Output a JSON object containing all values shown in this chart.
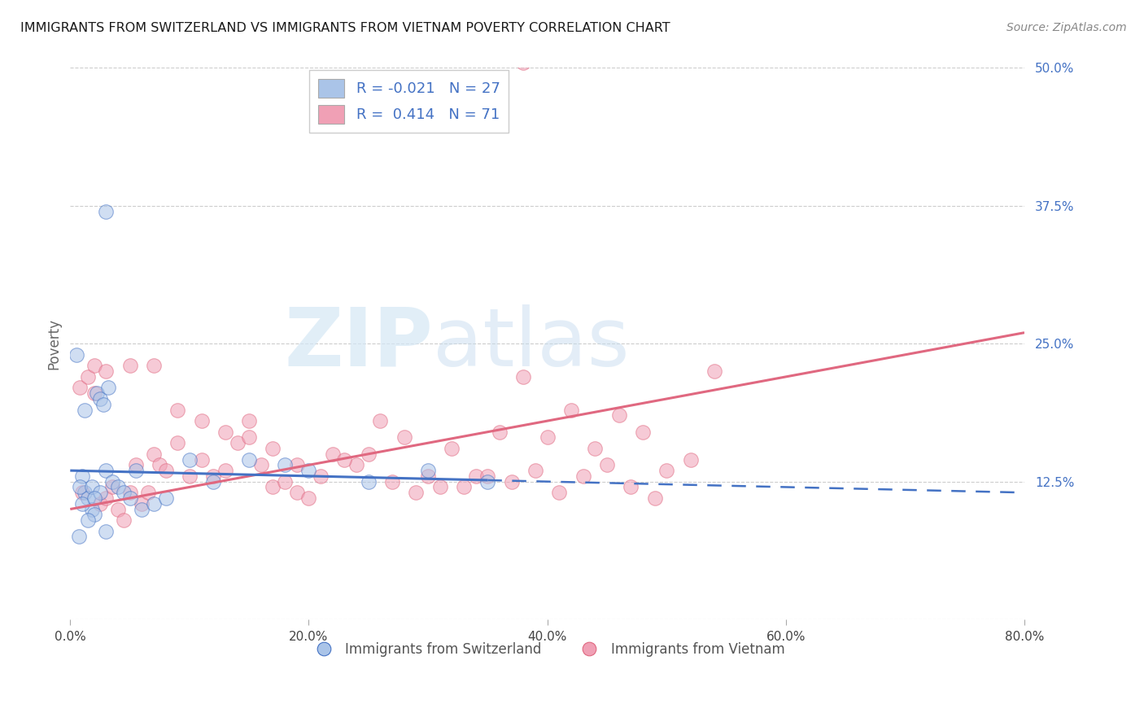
{
  "title": "IMMIGRANTS FROM SWITZERLAND VS IMMIGRANTS FROM VIETNAM POVERTY CORRELATION CHART",
  "source": "Source: ZipAtlas.com",
  "ylabel": "Poverty",
  "xtick_vals": [
    0.0,
    20.0,
    40.0,
    60.0,
    80.0
  ],
  "ytick_vals": [
    0.0,
    12.5,
    25.0,
    37.5,
    50.0
  ],
  "ytick_labels": [
    "",
    "12.5%",
    "25.0%",
    "37.5%",
    "50.0%"
  ],
  "xtick_labels": [
    "0.0%",
    "20.0%",
    "40.0%",
    "60.0%",
    "80.0%"
  ],
  "xlim": [
    0.0,
    80.0
  ],
  "ylim": [
    0.0,
    50.0
  ],
  "legend_r_swiss": "-0.021",
  "legend_n_swiss": "27",
  "legend_r_viet": "0.414",
  "legend_n_viet": "71",
  "swiss_face_color": "#aac4e8",
  "viet_face_color": "#f0a0b5",
  "swiss_line_color": "#4472c4",
  "viet_line_color": "#e06880",
  "legend_label_swiss": "Immigrants from Switzerland",
  "legend_label_viet": "Immigrants from Vietnam",
  "watermark_zip": "ZIP",
  "watermark_atlas": "atlas",
  "title_color": "#1a1a1a",
  "source_color": "#888888",
  "ytick_color": "#4472c4",
  "xtick_color": "#444444",
  "ylabel_color": "#666666",
  "grid_color": "#c8c8c8",
  "legend_text_color": "#4472c4",
  "bottom_legend_color": "#555555",
  "swiss_trend_start_y": 13.5,
  "swiss_trend_end_y": 11.5,
  "viet_trend_start_y": 10.0,
  "viet_trend_end_y": 26.0,
  "swiss_solid_end_x": 35.0,
  "swiss_x": [
    1.0,
    1.2,
    1.5,
    1.8,
    2.0,
    2.2,
    2.5,
    2.8,
    3.0,
    3.2,
    3.5,
    4.0,
    4.5,
    5.0,
    5.5,
    6.0,
    7.0,
    8.0,
    10.0,
    12.0,
    15.0,
    18.0,
    20.0,
    25.0,
    30.0,
    35.0,
    3.0
  ],
  "swiss_y": [
    13.0,
    11.5,
    11.0,
    10.0,
    9.5,
    20.5,
    20.0,
    19.5,
    13.5,
    21.0,
    12.5,
    12.0,
    11.5,
    11.0,
    13.5,
    10.0,
    10.5,
    11.0,
    14.5,
    12.5,
    14.5,
    14.0,
    13.5,
    12.5,
    13.5,
    12.5,
    37.0
  ],
  "swiss_extra_x": [
    0.8,
    1.0,
    1.5,
    1.8,
    2.5,
    0.5,
    1.2,
    2.0,
    3.0,
    0.7
  ],
  "swiss_extra_y": [
    12.0,
    10.5,
    9.0,
    12.0,
    11.5,
    24.0,
    19.0,
    11.0,
    8.0,
    7.5
  ],
  "viet_x": [
    0.8,
    1.0,
    1.5,
    2.0,
    2.5,
    3.0,
    3.5,
    4.0,
    4.5,
    5.0,
    5.5,
    6.0,
    6.5,
    7.0,
    7.5,
    8.0,
    9.0,
    10.0,
    11.0,
    12.0,
    13.0,
    14.0,
    15.0,
    16.0,
    17.0,
    18.0,
    19.0,
    20.0,
    22.0,
    24.0,
    26.0,
    28.0,
    30.0,
    32.0,
    34.0,
    36.0,
    38.0,
    40.0,
    42.0,
    44.0,
    46.0,
    48.0,
    50.0,
    52.0,
    54.0,
    2.0,
    3.0,
    5.0,
    7.0,
    9.0,
    11.0,
    13.0,
    15.0,
    17.0,
    19.0,
    21.0,
    23.0,
    25.0,
    27.0,
    29.0,
    31.0,
    33.0,
    35.0,
    37.0,
    39.0,
    41.0,
    43.0,
    45.0,
    47.0,
    49.0,
    38.0
  ],
  "viet_y": [
    21.0,
    11.5,
    22.0,
    20.5,
    10.5,
    11.0,
    12.0,
    10.0,
    9.0,
    11.5,
    14.0,
    10.5,
    11.5,
    15.0,
    14.0,
    13.5,
    16.0,
    13.0,
    14.5,
    13.0,
    13.5,
    16.0,
    16.5,
    14.0,
    12.0,
    12.5,
    11.5,
    11.0,
    15.0,
    14.0,
    18.0,
    16.5,
    13.0,
    15.5,
    13.0,
    17.0,
    22.0,
    16.5,
    19.0,
    15.5,
    18.5,
    17.0,
    13.5,
    14.5,
    22.5,
    23.0,
    22.5,
    23.0,
    23.0,
    19.0,
    18.0,
    17.0,
    18.0,
    15.5,
    14.0,
    13.0,
    14.5,
    15.0,
    12.5,
    11.5,
    12.0,
    12.0,
    13.0,
    12.5,
    13.5,
    11.5,
    13.0,
    14.0,
    12.0,
    11.0,
    50.5
  ]
}
